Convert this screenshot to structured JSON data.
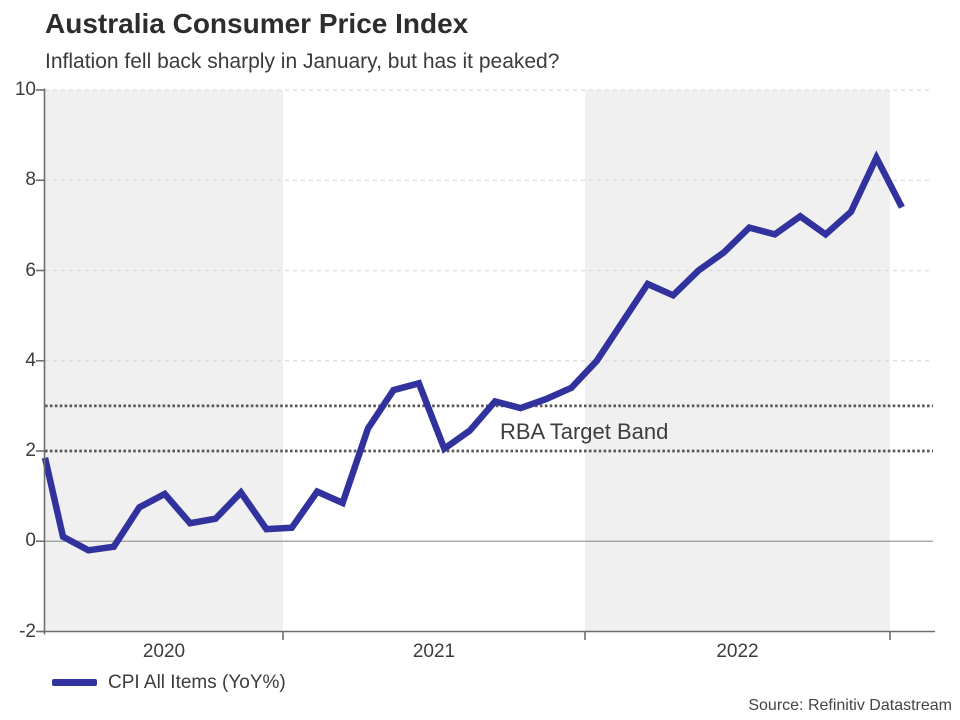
{
  "chart_data": {
    "type": "line",
    "title": "Australia Consumer Price Index",
    "subtitle": "Inflation fell back sharply in January, but has it peaked?",
    "ylim": [
      -2,
      10
    ],
    "yticks": [
      "10",
      "8",
      "6",
      "4",
      "2",
      "0",
      "-2"
    ],
    "ytick_values": [
      10,
      8,
      6,
      4,
      2,
      0,
      -2
    ],
    "gridline_values": [
      10,
      8,
      6,
      4
    ],
    "zero_line_value": 0,
    "year_labels": [
      "2020",
      "2021",
      "2022"
    ],
    "series": [
      {
        "name": "CPI All Items (YoY%)",
        "color": "#32329e",
        "values": [
          1.85,
          0.1,
          -0.2,
          -0.12,
          0.75,
          1.05,
          0.4,
          0.5,
          1.08,
          0.27,
          0.3,
          1.1,
          0.85,
          2.5,
          3.35,
          3.5,
          2.05,
          2.45,
          3.1,
          2.95,
          3.15,
          3.4,
          4.0,
          4.85,
          5.7,
          5.45,
          6.0,
          6.4,
          6.95,
          6.8,
          7.2,
          6.8,
          7.3,
          8.5,
          7.4
        ]
      }
    ],
    "target_band": {
      "label": "RBA Target Band",
      "low": 2,
      "high": 3
    },
    "legend": [
      {
        "label": "CPI All Items (YoY%)",
        "color": "#32329e"
      }
    ],
    "source": "Source: Refinitiv Datastream",
    "colors": {
      "line": "#32329e",
      "year_shading": "#f0f0f0",
      "gridline": "#dcdcdc",
      "zero_line": "#999999",
      "axis": "#6e6e6e",
      "target_dotted": "#585858"
    }
  }
}
